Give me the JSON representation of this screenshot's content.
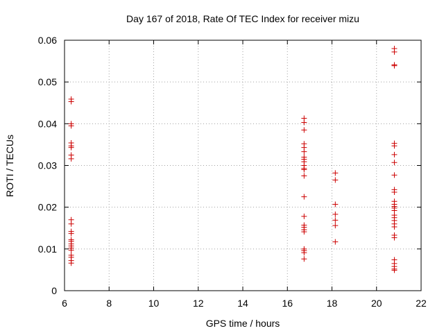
{
  "chart_data": {
    "type": "scatter",
    "title": "Day 167 of 2018, Rate Of TEC Index for receiver mizu",
    "xlabel": "GPS time / hours",
    "ylabel": "ROTI / TECUs",
    "xlim": [
      6,
      22
    ],
    "ylim": [
      0,
      0.06
    ],
    "xticks": [
      "6",
      "8",
      "10",
      "12",
      "14",
      "16",
      "18",
      "20",
      "22"
    ],
    "yticks": [
      "0",
      "0.01",
      "0.02",
      "0.03",
      "0.04",
      "0.05",
      "0.06"
    ],
    "grid": true,
    "marker_color": "#cc0000",
    "series": [
      {
        "name": "ROTI",
        "marker": "+",
        "points": [
          {
            "x": 6.3,
            "y": 0.0459
          },
          {
            "x": 6.3,
            "y": 0.0453
          },
          {
            "x": 6.3,
            "y": 0.04
          },
          {
            "x": 6.3,
            "y": 0.0395
          },
          {
            "x": 6.3,
            "y": 0.0354
          },
          {
            "x": 6.3,
            "y": 0.0347
          },
          {
            "x": 6.3,
            "y": 0.0343
          },
          {
            "x": 6.3,
            "y": 0.0325
          },
          {
            "x": 6.3,
            "y": 0.0316
          },
          {
            "x": 6.3,
            "y": 0.017
          },
          {
            "x": 6.3,
            "y": 0.016
          },
          {
            "x": 6.3,
            "y": 0.0142
          },
          {
            "x": 6.3,
            "y": 0.0137
          },
          {
            "x": 6.3,
            "y": 0.0122
          },
          {
            "x": 6.3,
            "y": 0.0118
          },
          {
            "x": 6.3,
            "y": 0.0112
          },
          {
            "x": 6.3,
            "y": 0.0107
          },
          {
            "x": 6.3,
            "y": 0.0102
          },
          {
            "x": 6.3,
            "y": 0.0097
          },
          {
            "x": 6.3,
            "y": 0.0085
          },
          {
            "x": 6.3,
            "y": 0.008
          },
          {
            "x": 6.3,
            "y": 0.0072
          },
          {
            "x": 6.3,
            "y": 0.0066
          },
          {
            "x": 16.75,
            "y": 0.0413
          },
          {
            "x": 16.75,
            "y": 0.0403
          },
          {
            "x": 16.75,
            "y": 0.0385
          },
          {
            "x": 16.75,
            "y": 0.0352
          },
          {
            "x": 16.75,
            "y": 0.0343
          },
          {
            "x": 16.75,
            "y": 0.0333
          },
          {
            "x": 16.75,
            "y": 0.032
          },
          {
            "x": 16.75,
            "y": 0.0315
          },
          {
            "x": 16.75,
            "y": 0.0309
          },
          {
            "x": 16.75,
            "y": 0.03
          },
          {
            "x": 16.75,
            "y": 0.0293
          },
          {
            "x": 16.75,
            "y": 0.029
          },
          {
            "x": 16.75,
            "y": 0.0275
          },
          {
            "x": 16.75,
            "y": 0.0225
          },
          {
            "x": 16.75,
            "y": 0.0178
          },
          {
            "x": 16.75,
            "y": 0.0157
          },
          {
            "x": 16.75,
            "y": 0.0152
          },
          {
            "x": 16.75,
            "y": 0.0146
          },
          {
            "x": 16.75,
            "y": 0.0141
          },
          {
            "x": 16.75,
            "y": 0.01
          },
          {
            "x": 16.75,
            "y": 0.0096
          },
          {
            "x": 16.75,
            "y": 0.0091
          },
          {
            "x": 16.75,
            "y": 0.0076
          },
          {
            "x": 18.15,
            "y": 0.0282
          },
          {
            "x": 18.15,
            "y": 0.0265
          },
          {
            "x": 18.15,
            "y": 0.0207
          },
          {
            "x": 18.15,
            "y": 0.0183
          },
          {
            "x": 18.15,
            "y": 0.0169
          },
          {
            "x": 18.15,
            "y": 0.0156
          },
          {
            "x": 18.15,
            "y": 0.0117
          },
          {
            "x": 20.8,
            "y": 0.058
          },
          {
            "x": 20.8,
            "y": 0.0572
          },
          {
            "x": 20.8,
            "y": 0.0541
          },
          {
            "x": 20.8,
            "y": 0.0539
          },
          {
            "x": 20.8,
            "y": 0.0353
          },
          {
            "x": 20.8,
            "y": 0.0347
          },
          {
            "x": 20.8,
            "y": 0.0326
          },
          {
            "x": 20.8,
            "y": 0.0307
          },
          {
            "x": 20.8,
            "y": 0.0277
          },
          {
            "x": 20.8,
            "y": 0.0242
          },
          {
            "x": 20.8,
            "y": 0.0236
          },
          {
            "x": 20.8,
            "y": 0.0214
          },
          {
            "x": 20.8,
            "y": 0.0207
          },
          {
            "x": 20.8,
            "y": 0.0202
          },
          {
            "x": 20.8,
            "y": 0.0198
          },
          {
            "x": 20.8,
            "y": 0.0192
          },
          {
            "x": 20.8,
            "y": 0.0181
          },
          {
            "x": 20.8,
            "y": 0.0175
          },
          {
            "x": 20.8,
            "y": 0.0168
          },
          {
            "x": 20.8,
            "y": 0.016
          },
          {
            "x": 20.8,
            "y": 0.0153
          },
          {
            "x": 20.8,
            "y": 0.0133
          },
          {
            "x": 20.8,
            "y": 0.0127
          },
          {
            "x": 20.8,
            "y": 0.0074
          },
          {
            "x": 20.8,
            "y": 0.0065
          },
          {
            "x": 20.8,
            "y": 0.0058
          },
          {
            "x": 20.8,
            "y": 0.0052
          },
          {
            "x": 20.8,
            "y": 0.0049
          }
        ]
      }
    ]
  }
}
